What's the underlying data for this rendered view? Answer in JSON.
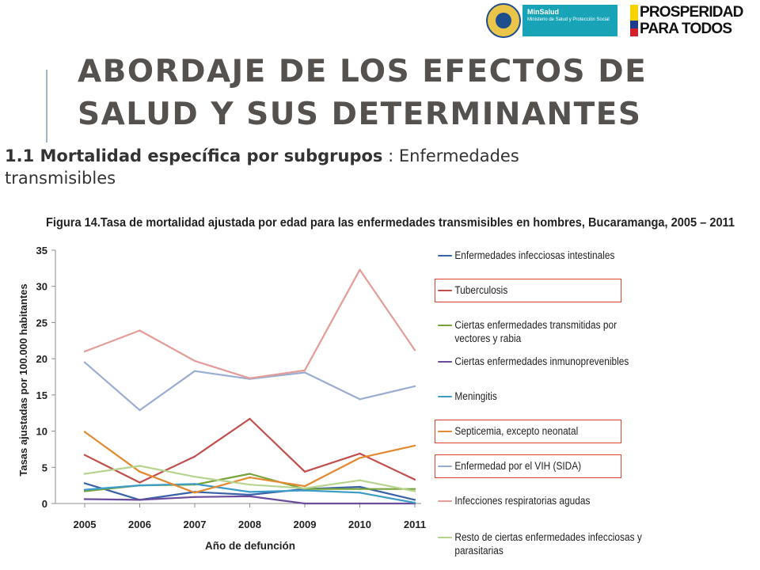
{
  "header": {
    "minsalud_name": "MinSalud",
    "minsalud_sub": "Ministerio de Salud y Protección Social",
    "prosperidad_line1": "PROSPERIDAD",
    "prosperidad_line2": "PARA TODOS"
  },
  "slide": {
    "title_line1": "ABORDAJE DE LOS EFECTOS DE",
    "title_line2": "SALUD Y SUS DETERMINANTES",
    "subtitle_bold": "1.1 Mortalidad específica por subgrupos",
    "subtitle_rest": " : Enfermedades transmisibles"
  },
  "chart_data": {
    "type": "line",
    "title": "Figura 14.Tasa de mortalidad ajustada por edad para las enfermedades transmisibles en hombres, Bucaramanga, 2005 – 2011",
    "xlabel": "Año de defunción",
    "ylabel": "Tasas ajustadas por 100.000 habitantes",
    "ylim": [
      0,
      35
    ],
    "yticks": [
      0,
      5,
      10,
      15,
      20,
      25,
      30,
      35
    ],
    "grid": false,
    "legend_position": "right",
    "categories": [
      "2005",
      "2006",
      "2007",
      "2008",
      "2009",
      "2010",
      "2011"
    ],
    "series": [
      {
        "name": "Enfermedades infecciosas intestinales",
        "color": "#3a62a8",
        "values": [
          2.8,
          0.5,
          1.6,
          1.2,
          2.0,
          2.3,
          0.5
        ],
        "highlighted": false
      },
      {
        "name": "Tuberculosis",
        "color": "#c0504d",
        "values": [
          6.7,
          2.9,
          6.5,
          11.7,
          4.4,
          6.9,
          3.3
        ],
        "highlighted": true
      },
      {
        "name": "Ciertas enfermedades transmitidas por vectores y rabia",
        "color": "#77a33a",
        "values": [
          1.7,
          2.5,
          2.6,
          4.1,
          2.0,
          2.0,
          2.0
        ],
        "highlighted": false
      },
      {
        "name": "Ciertas enfermedades inmunoprevenibles",
        "color": "#6a4c9c",
        "values": [
          0.6,
          0.5,
          0.9,
          1.0,
          0.0,
          0.0,
          0.0
        ],
        "highlighted": false
      },
      {
        "name": "Meningitis",
        "color": "#3c9cc8",
        "values": [
          1.9,
          2.5,
          2.7,
          1.6,
          1.8,
          1.5,
          0.1
        ],
        "highlighted": false
      },
      {
        "name": "Septicemia, excepto neonatal",
        "color": "#e3892f",
        "values": [
          9.9,
          4.4,
          1.5,
          3.6,
          2.4,
          6.3,
          8.0
        ],
        "highlighted": true
      },
      {
        "name": "Enfermedad por el VIH (SIDA)",
        "color": "#9aaed3",
        "values": [
          19.5,
          12.9,
          18.3,
          17.2,
          18.1,
          14.4,
          16.2
        ],
        "highlighted": true
      },
      {
        "name": "Infecciones respiratorias agudas",
        "color": "#e59c98",
        "values": [
          21.0,
          23.9,
          19.7,
          17.3,
          18.4,
          32.3,
          21.2
        ],
        "highlighted": false
      },
      {
        "name": "Resto de ciertas enfermedades infecciosas y parasitarias",
        "color": "#b7d48f",
        "values": [
          4.1,
          5.2,
          3.7,
          2.6,
          2.1,
          3.2,
          1.7
        ],
        "highlighted": false
      }
    ]
  }
}
